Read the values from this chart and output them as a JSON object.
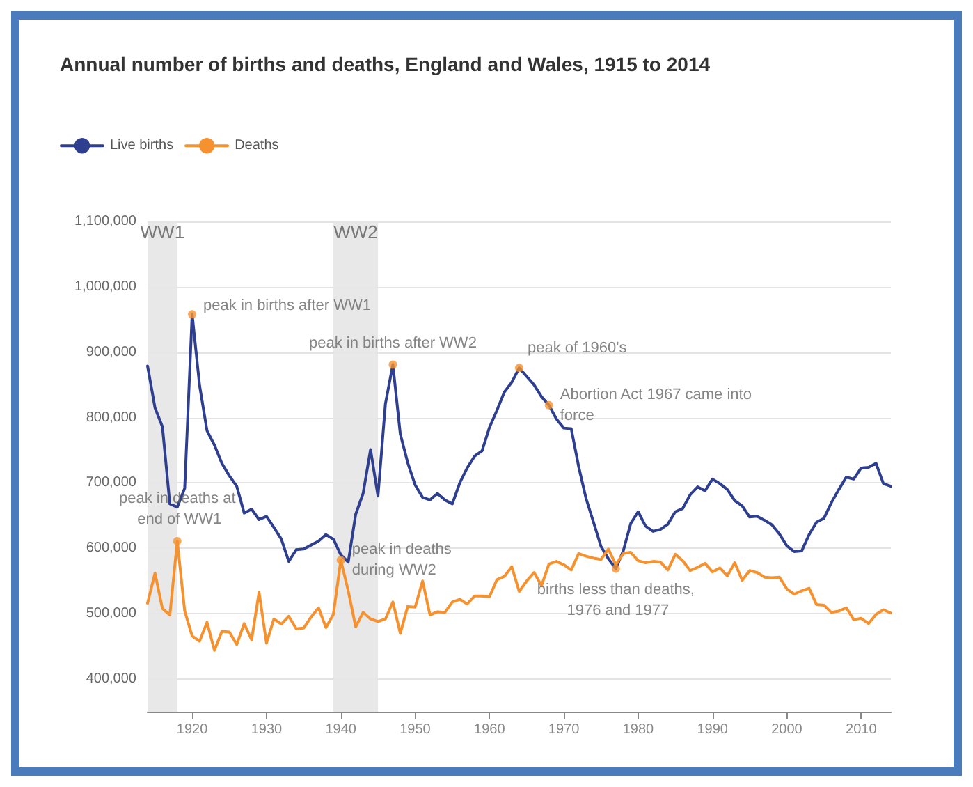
{
  "chart_data": {
    "type": "line",
    "title": "Annual number of births and deaths, England and Wales, 1915 to 2014",
    "x": [
      1914,
      1915,
      1916,
      1917,
      1918,
      1919,
      1920,
      1921,
      1922,
      1923,
      1924,
      1925,
      1926,
      1927,
      1928,
      1929,
      1930,
      1931,
      1932,
      1933,
      1934,
      1935,
      1936,
      1937,
      1938,
      1939,
      1940,
      1941,
      1942,
      1943,
      1944,
      1945,
      1946,
      1947,
      1948,
      1949,
      1950,
      1951,
      1952,
      1953,
      1954,
      1955,
      1956,
      1957,
      1958,
      1959,
      1960,
      1961,
      1962,
      1963,
      1964,
      1965,
      1966,
      1967,
      1968,
      1969,
      1970,
      1971,
      1972,
      1973,
      1974,
      1975,
      1976,
      1977,
      1978,
      1979,
      1980,
      1981,
      1982,
      1983,
      1984,
      1985,
      1986,
      1987,
      1988,
      1989,
      1990,
      1991,
      1992,
      1993,
      1994,
      1995,
      1996,
      1997,
      1998,
      1999,
      2000,
      2001,
      2002,
      2003,
      2004,
      2005,
      2006,
      2007,
      2008,
      2009,
      2010,
      2011,
      2012,
      2013,
      2014
    ],
    "series": [
      {
        "name": "Live births",
        "color": "#2f3f8f",
        "values": [
          879000,
          815000,
          786000,
          668000,
          663000,
          692000,
          958000,
          849000,
          780000,
          758000,
          730000,
          711000,
          695000,
          654000,
          660000,
          644000,
          649000,
          632000,
          614000,
          580000,
          598000,
          599000,
          605000,
          611000,
          621000,
          614000,
          590000,
          579000,
          652000,
          684000,
          751000,
          680000,
          821000,
          881000,
          775000,
          731000,
          697000,
          678000,
          674000,
          684000,
          674000,
          668000,
          700000,
          723000,
          741000,
          749000,
          785000,
          811000,
          839000,
          854000,
          876000,
          863000,
          850000,
          832000,
          819000,
          798000,
          784000,
          783000,
          725000,
          676000,
          640000,
          603000,
          584000,
          569000,
          596000,
          638000,
          656000,
          634000,
          626000,
          629000,
          637000,
          656000,
          661000,
          682000,
          694000,
          688000,
          706000,
          699000,
          690000,
          673000,
          665000,
          648000,
          649000,
          643000,
          636000,
          622000,
          604000,
          595000,
          596000,
          621000,
          640000,
          646000,
          670000,
          690000,
          709000,
          706000,
          723000,
          724000,
          730000,
          699000,
          695000
        ]
      },
      {
        "name": "Deaths",
        "color": "#f5922f",
        "values": [
          516000,
          562000,
          508000,
          498000,
          611000,
          504000,
          466000,
          458000,
          487000,
          444000,
          473000,
          472000,
          453000,
          485000,
          460000,
          533000,
          455000,
          492000,
          484000,
          496000,
          477000,
          478000,
          495000,
          509000,
          479000,
          499000,
          582000,
          535000,
          480000,
          502000,
          492000,
          488000,
          492000,
          518000,
          470000,
          511000,
          510000,
          550000,
          498000,
          503000,
          502000,
          518000,
          522000,
          515000,
          527000,
          527000,
          526000,
          552000,
          557000,
          572000,
          534000,
          550000,
          563000,
          543000,
          576000,
          580000,
          575000,
          567000,
          592000,
          588000,
          585000,
          583000,
          599000,
          575000,
          592000,
          594000,
          581000,
          578000,
          580000,
          579000,
          567000,
          591000,
          581000,
          566000,
          571000,
          577000,
          564000,
          570000,
          558000,
          578000,
          551000,
          566000,
          563000,
          556000,
          555000,
          556000,
          538000,
          530000,
          535000,
          539000,
          514000,
          513000,
          502000,
          504000,
          509000,
          491000,
          493000,
          485000,
          499000,
          506000,
          501000
        ]
      }
    ],
    "xlim": [
      1914,
      2014
    ],
    "xticks": [
      1920,
      1930,
      1940,
      1950,
      1960,
      1970,
      1980,
      1990,
      2000,
      2010
    ],
    "ylim": [
      350000,
      1100000
    ],
    "yticks": [
      {
        "value": 400000,
        "label": "400,000"
      },
      {
        "value": 500000,
        "label": "500,000"
      },
      {
        "value": 600000,
        "label": "600,000"
      },
      {
        "value": 700000,
        "label": "700,000"
      },
      {
        "value": 800000,
        "label": "800,000"
      },
      {
        "value": 900000,
        "label": "900,000"
      },
      {
        "value": 1000000,
        "label": "1,000,000"
      },
      {
        "value": 1100000,
        "label": "1,100,000"
      }
    ],
    "grid": "y",
    "legend": "top left",
    "bands": [
      {
        "axis": "x",
        "from": 1914,
        "to": 1918,
        "label": "WW1",
        "color": "#e6e6e6"
      },
      {
        "axis": "x",
        "from": 1939,
        "to": 1945,
        "label": "WW2",
        "color": "#e6e6e6"
      }
    ],
    "annotations": [
      {
        "text": "peak in births after WW1",
        "x": 1920,
        "y": 958000
      },
      {
        "text": "peak in births after WW2",
        "x": 1947,
        "y": 881000
      },
      {
        "text": "peak of 1960's",
        "x": 1964,
        "y": 876000
      },
      {
        "text": "Abortion Act 1967 came into force",
        "x": 1968,
        "y": 819000
      },
      {
        "text": "peak in deaths at end of WW1",
        "x": 1918,
        "y": 611000
      },
      {
        "text": "peak in deaths during WW2",
        "x": 1940,
        "y": 582000
      },
      {
        "text": "births less than deaths, 1976 and 1977",
        "x": 1977,
        "y": 569000
      }
    ]
  }
}
